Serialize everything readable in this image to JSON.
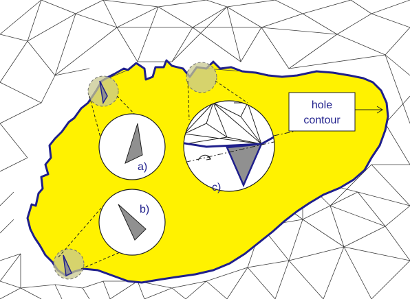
{
  "labels": {
    "a": "a)",
    "b": "b)",
    "c": "c)",
    "hole_line1": "hole",
    "hole_line2": "contour"
  },
  "colors": {
    "hole_fill": "#FFF200",
    "contour": "#1F1F8C",
    "mesh_line": "#3c3c3c",
    "sliver": "#909090",
    "highlight_circle": "#C8C890",
    "label_text": "#1F1F8C"
  }
}
